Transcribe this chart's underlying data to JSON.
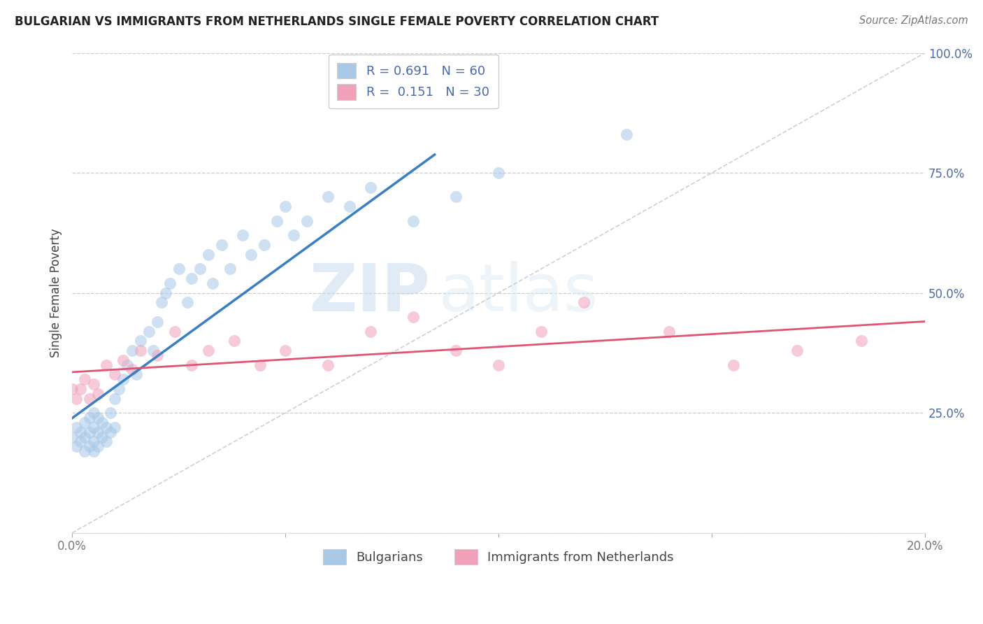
{
  "title": "BULGARIAN VS IMMIGRANTS FROM NETHERLANDS SINGLE FEMALE POVERTY CORRELATION CHART",
  "source": "Source: ZipAtlas.com",
  "ylabel": "Single Female Poverty",
  "xlim": [
    0.0,
    0.2
  ],
  "ylim": [
    0.0,
    1.0
  ],
  "x_ticks": [
    0.0,
    0.05,
    0.1,
    0.15,
    0.2
  ],
  "x_tick_labels": [
    "0.0%",
    "",
    "",
    "",
    "20.0%"
  ],
  "y_ticks": [
    0.0,
    0.25,
    0.5,
    0.75,
    1.0
  ],
  "y_tick_labels": [
    "",
    "25.0%",
    "50.0%",
    "75.0%",
    "100.0%"
  ],
  "blue_color": "#a8c8e8",
  "pink_color": "#f0a0b8",
  "blue_line_color": "#3a7fc1",
  "pink_line_color": "#e05575",
  "diag_line_color": "#c8c8c8",
  "R_blue": 0.691,
  "N_blue": 60,
  "R_pink": 0.151,
  "N_pink": 30,
  "legend_label_blue": "Bulgarians",
  "legend_label_pink": "Immigrants from Netherlands",
  "watermark_zip": "ZIP",
  "watermark_atlas": "atlas",
  "bg_color": "#ffffff",
  "grid_color": "#c8c8c8",
  "title_color": "#222222",
  "label_color": "#4a6ab0",
  "blue_x": [
    0.0,
    0.001,
    0.001,
    0.002,
    0.002,
    0.003,
    0.003,
    0.003,
    0.004,
    0.004,
    0.004,
    0.005,
    0.005,
    0.005,
    0.005,
    0.006,
    0.006,
    0.006,
    0.007,
    0.007,
    0.008,
    0.008,
    0.009,
    0.009,
    0.01,
    0.01,
    0.011,
    0.012,
    0.013,
    0.014,
    0.015,
    0.016,
    0.018,
    0.019,
    0.02,
    0.021,
    0.022,
    0.023,
    0.025,
    0.027,
    0.028,
    0.03,
    0.032,
    0.033,
    0.035,
    0.037,
    0.04,
    0.042,
    0.045,
    0.048,
    0.05,
    0.052,
    0.055,
    0.06,
    0.065,
    0.07,
    0.08,
    0.09,
    0.1,
    0.13
  ],
  "blue_y": [
    0.2,
    0.18,
    0.22,
    0.19,
    0.21,
    0.17,
    0.2,
    0.23,
    0.18,
    0.21,
    0.24,
    0.17,
    0.19,
    0.22,
    0.25,
    0.18,
    0.21,
    0.24,
    0.2,
    0.23,
    0.19,
    0.22,
    0.21,
    0.25,
    0.22,
    0.28,
    0.3,
    0.32,
    0.35,
    0.38,
    0.33,
    0.4,
    0.42,
    0.38,
    0.44,
    0.48,
    0.5,
    0.52,
    0.55,
    0.48,
    0.53,
    0.55,
    0.58,
    0.52,
    0.6,
    0.55,
    0.62,
    0.58,
    0.6,
    0.65,
    0.68,
    0.62,
    0.65,
    0.7,
    0.68,
    0.72,
    0.65,
    0.7,
    0.75,
    0.83
  ],
  "pink_x": [
    0.0,
    0.001,
    0.002,
    0.003,
    0.004,
    0.005,
    0.006,
    0.008,
    0.01,
    0.012,
    0.014,
    0.016,
    0.02,
    0.024,
    0.028,
    0.032,
    0.038,
    0.044,
    0.05,
    0.06,
    0.07,
    0.08,
    0.09,
    0.1,
    0.11,
    0.12,
    0.14,
    0.155,
    0.17,
    0.185
  ],
  "pink_y": [
    0.3,
    0.28,
    0.3,
    0.32,
    0.28,
    0.31,
    0.29,
    0.35,
    0.33,
    0.36,
    0.34,
    0.38,
    0.37,
    0.42,
    0.35,
    0.38,
    0.4,
    0.35,
    0.38,
    0.35,
    0.42,
    0.45,
    0.38,
    0.35,
    0.42,
    0.48,
    0.42,
    0.35,
    0.38,
    0.4
  ]
}
